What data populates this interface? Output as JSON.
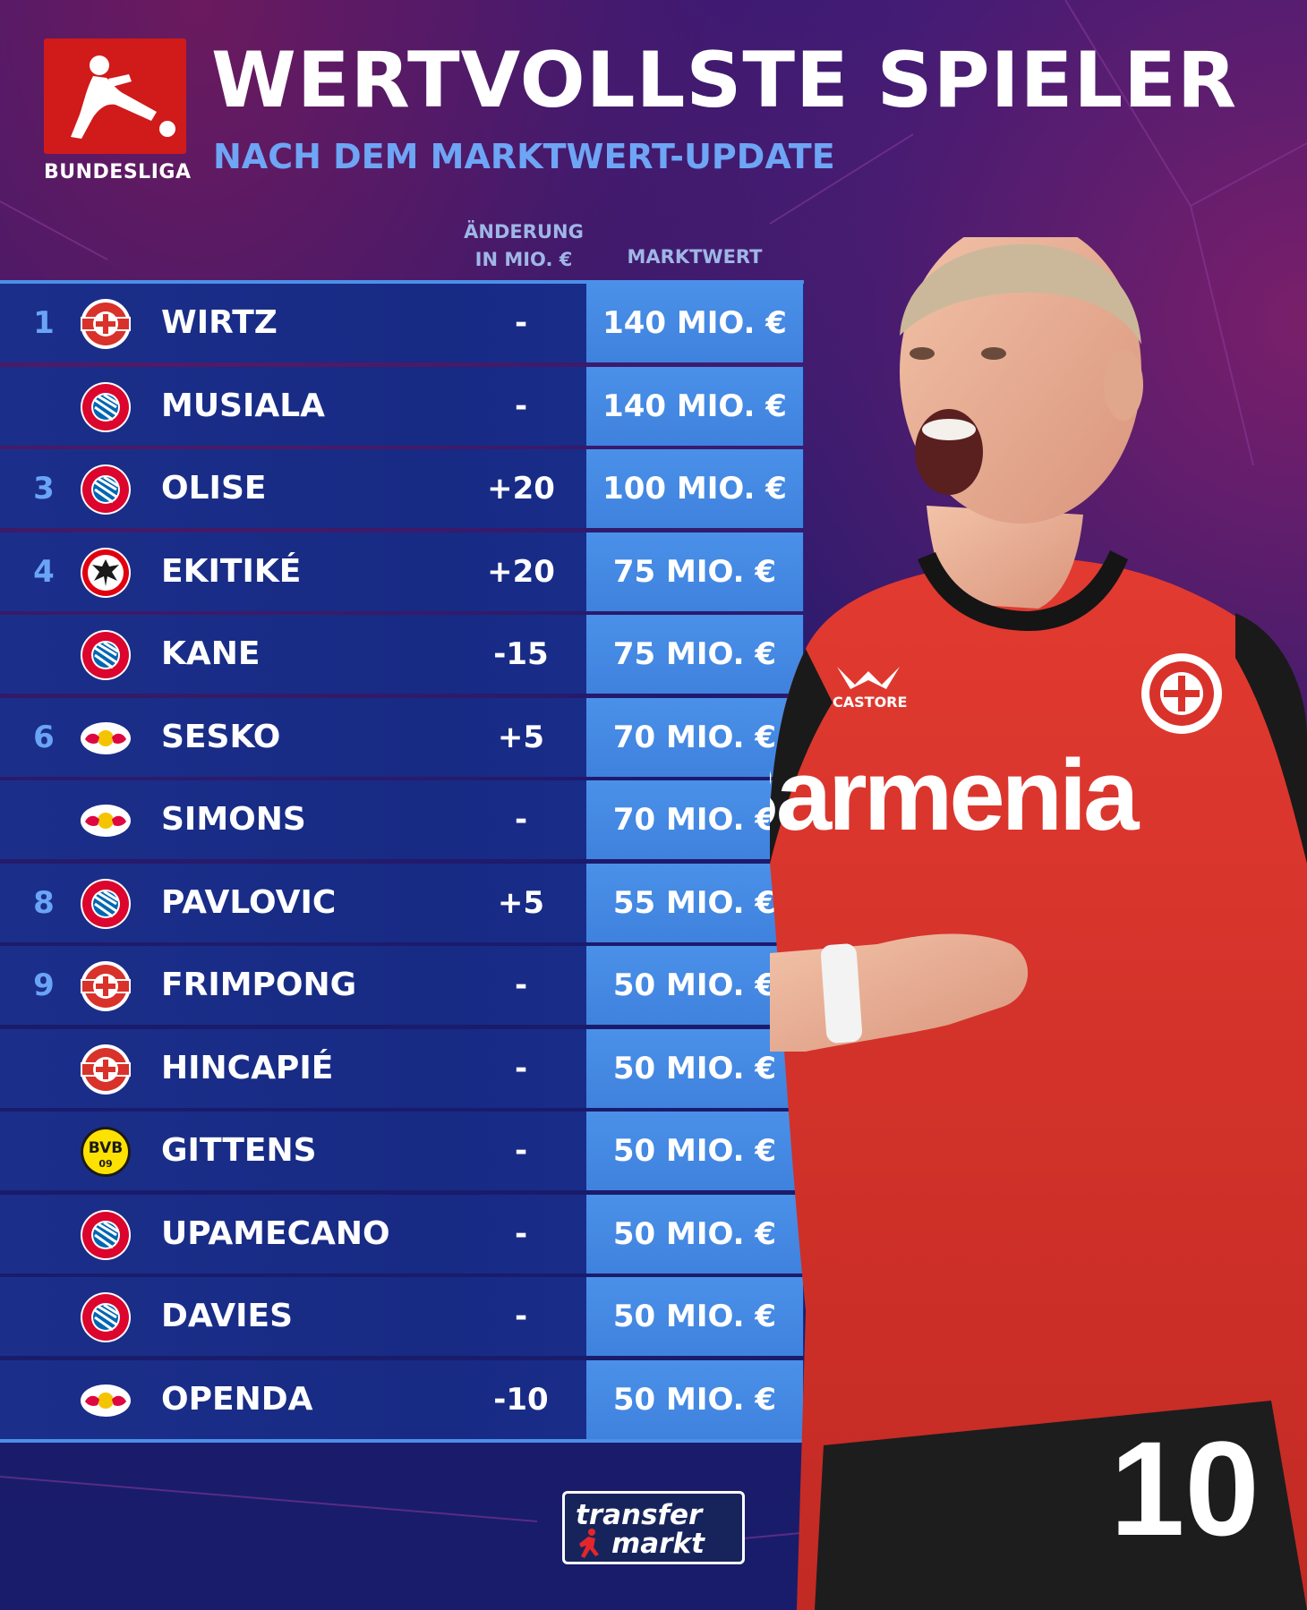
{
  "header": {
    "league": "BUNDESLIGA",
    "title": "WERTVOLLSTE SPIELER",
    "subtitle": "NACH DEM MARKTWERT-UPDATE"
  },
  "columns": {
    "change_line1": "ÄNDERUNG",
    "change_line2": "IN MIO. €",
    "value": "MARKTWERT"
  },
  "rows": [
    {
      "rank": "1",
      "club": "leverkusen",
      "name": "WIRTZ",
      "change": "-",
      "value": "140 MIO. €"
    },
    {
      "rank": "",
      "club": "bayern",
      "name": "MUSIALA",
      "change": "-",
      "value": "140 MIO. €"
    },
    {
      "rank": "3",
      "club": "bayern",
      "name": "OLISE",
      "change": "+20",
      "value": "100 MIO. €"
    },
    {
      "rank": "4",
      "club": "frankfurt",
      "name": "EKITIKÉ",
      "change": "+20",
      "value": "75 MIO. €"
    },
    {
      "rank": "",
      "club": "bayern",
      "name": "KANE",
      "change": "-15",
      "value": "75 MIO. €"
    },
    {
      "rank": "6",
      "club": "leipzig",
      "name": "SESKO",
      "change": "+5",
      "value": "70 MIO. €"
    },
    {
      "rank": "",
      "club": "leipzig",
      "name": "SIMONS",
      "change": "-",
      "value": "70 MIO. €"
    },
    {
      "rank": "8",
      "club": "bayern",
      "name": "PAVLOVIC",
      "change": "+5",
      "value": "55 MIO. €"
    },
    {
      "rank": "9",
      "club": "leverkusen",
      "name": "FRIMPONG",
      "change": "-",
      "value": "50 MIO. €"
    },
    {
      "rank": "",
      "club": "leverkusen",
      "name": "HINCAPIÉ",
      "change": "-",
      "value": "50 MIO. €"
    },
    {
      "rank": "",
      "club": "dortmund",
      "name": "GITTENS",
      "change": "-",
      "value": "50 MIO. €"
    },
    {
      "rank": "",
      "club": "bayern",
      "name": "UPAMECANO",
      "change": "-",
      "value": "50 MIO. €"
    },
    {
      "rank": "",
      "club": "bayern",
      "name": "DAVIES",
      "change": "-",
      "value": "50 MIO. €"
    },
    {
      "rank": "",
      "club": "leipzig",
      "name": "OPENDA",
      "change": "-10",
      "value": "50 MIO. €"
    }
  ],
  "player_photo": {
    "sponsor": "Barmenia",
    "kit_brand": "CASTORE",
    "number": "10"
  },
  "footer": {
    "brand_line1": "transfer",
    "brand_line2": "markt"
  },
  "colors": {
    "accent_blue": "#4a90e8",
    "rank_blue": "#6aa4f7",
    "row_bg": "#1b2f8a",
    "bundesliga_red": "#d11a1a",
    "jersey_red": "#d8322b"
  }
}
